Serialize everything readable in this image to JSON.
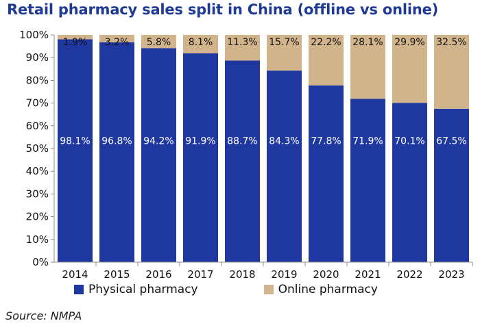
{
  "chart_data": {
    "type": "bar",
    "stacked": true,
    "title": "Retail pharmacy sales split in China (offline vs online)",
    "categories": [
      "2014",
      "2015",
      "2016",
      "2017",
      "2018",
      "2019",
      "2020",
      "2021",
      "2022",
      "2023"
    ],
    "series": [
      {
        "name": "Physical pharmacy",
        "color": "#1e38a0",
        "values": [
          98.1,
          96.8,
          94.2,
          91.9,
          88.7,
          84.3,
          77.8,
          71.9,
          70.1,
          67.5
        ],
        "labels": [
          "98.1%",
          "96.8%",
          "94.2%",
          "91.9%",
          "88.7%",
          "84.3%",
          "77.8%",
          "71.9%",
          "70.1%",
          "67.5%"
        ]
      },
      {
        "name": "Online pharmacy",
        "color": "#d2b48c",
        "values": [
          1.9,
          3.2,
          5.8,
          8.1,
          11.3,
          15.7,
          22.2,
          28.1,
          29.9,
          32.5
        ],
        "labels": [
          "1.9%",
          "3.2%",
          "5.8%",
          "8.1%",
          "11.3%",
          "15.7%",
          "22.2%",
          "28.1%",
          "29.9%",
          "32.5%"
        ]
      }
    ],
    "yticks": [
      "0%",
      "10%",
      "20%",
      "30%",
      "40%",
      "50%",
      "60%",
      "70%",
      "80%",
      "90%",
      "100%"
    ],
    "ylim": [
      0,
      100
    ],
    "xlabel": "",
    "ylabel": "",
    "legend": "bottom",
    "grid": false
  },
  "source": "Source: NMPA"
}
